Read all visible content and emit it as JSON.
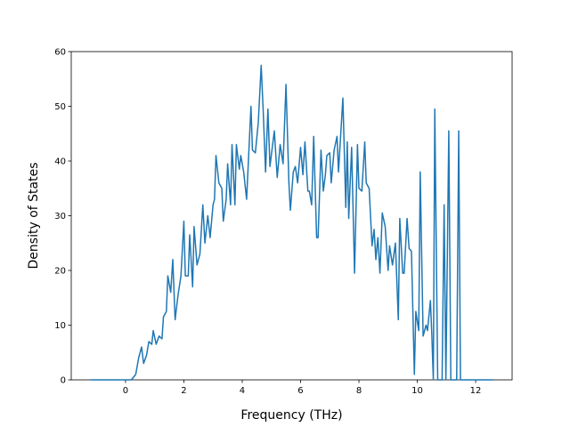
{
  "chart_data": {
    "type": "line",
    "xlabel": "Frequency (THz)",
    "ylabel": "Density of States",
    "xlim": [
      -1.86,
      13.25
    ],
    "ylim": [
      0,
      60
    ],
    "xticks": [
      0,
      2,
      4,
      6,
      8,
      10,
      12
    ],
    "yticks": [
      0,
      10,
      20,
      30,
      40,
      50,
      60
    ],
    "x": [
      -1.2,
      0.2,
      0.35,
      0.45,
      0.55,
      0.62,
      0.72,
      0.8,
      0.9,
      0.95,
      1.05,
      1.15,
      1.25,
      1.3,
      1.4,
      1.45,
      1.55,
      1.62,
      1.7,
      1.8,
      1.9,
      2.0,
      2.05,
      2.15,
      2.2,
      2.3,
      2.35,
      2.45,
      2.55,
      2.65,
      2.72,
      2.82,
      2.9,
      3.0,
      3.05,
      3.1,
      3.2,
      3.3,
      3.35,
      3.45,
      3.5,
      3.6,
      3.65,
      3.75,
      3.8,
      3.9,
      3.95,
      4.05,
      4.15,
      4.3,
      4.35,
      4.45,
      4.55,
      4.65,
      4.72,
      4.8,
      4.88,
      4.95,
      5.1,
      5.2,
      5.3,
      5.4,
      5.5,
      5.6,
      5.65,
      5.75,
      5.82,
      5.9,
      6.0,
      6.08,
      6.15,
      6.25,
      6.3,
      6.38,
      6.45,
      6.55,
      6.6,
      6.7,
      6.78,
      6.85,
      6.9,
      7.0,
      7.05,
      7.15,
      7.25,
      7.3,
      7.45,
      7.55,
      7.6,
      7.65,
      7.75,
      7.85,
      7.95,
      8.0,
      8.1,
      8.2,
      8.25,
      8.35,
      8.45,
      8.52,
      8.58,
      8.65,
      8.72,
      8.8,
      8.9,
      9.0,
      9.05,
      9.15,
      9.25,
      9.35,
      9.4,
      9.5,
      9.55,
      9.65,
      9.72,
      9.8,
      9.9,
      9.95,
      10.05,
      10.1,
      10.2,
      10.3,
      10.35,
      10.45,
      10.5,
      10.55,
      10.6,
      10.7,
      10.85,
      10.92,
      10.98,
      11.08,
      11.15,
      11.35,
      11.42,
      11.48,
      12.6
    ],
    "series": [
      {
        "color": "#1f77b4",
        "values": [
          0,
          0,
          1,
          4,
          6,
          3,
          4.5,
          7,
          6.5,
          9,
          6.5,
          8,
          7.5,
          11.5,
          12.5,
          19,
          16,
          22,
          11,
          15.5,
          19,
          29,
          19,
          19,
          26.5,
          17,
          28,
          21,
          23,
          32,
          25,
          30,
          26,
          32,
          33,
          41,
          36,
          35,
          29,
          33,
          39.5,
          32,
          43,
          32,
          43,
          38.5,
          41,
          38,
          33,
          50,
          42,
          41.5,
          47,
          57.5,
          49,
          38,
          49.5,
          39,
          45.5,
          37,
          43,
          39.5,
          54,
          36,
          31,
          38,
          39,
          36,
          42.5,
          37.5,
          43.5,
          34.5,
          34.5,
          32,
          44.5,
          26,
          26,
          42,
          34.5,
          37.5,
          41,
          41.5,
          36,
          42,
          44.5,
          38,
          51.5,
          31.5,
          43.5,
          29.5,
          42.5,
          19.5,
          43,
          35,
          34.5,
          43.5,
          36,
          35,
          24.5,
          27.5,
          22,
          26,
          19.5,
          30.5,
          28,
          20,
          24.5,
          21,
          25,
          11,
          29.5,
          19.5,
          19.5,
          29.5,
          24,
          23.5,
          1,
          12.5,
          9,
          38,
          8,
          10,
          9,
          14.5,
          8,
          0,
          49.5,
          0,
          0,
          32,
          0,
          45.5,
          0,
          0,
          45.5,
          0,
          0
        ]
      }
    ]
  }
}
